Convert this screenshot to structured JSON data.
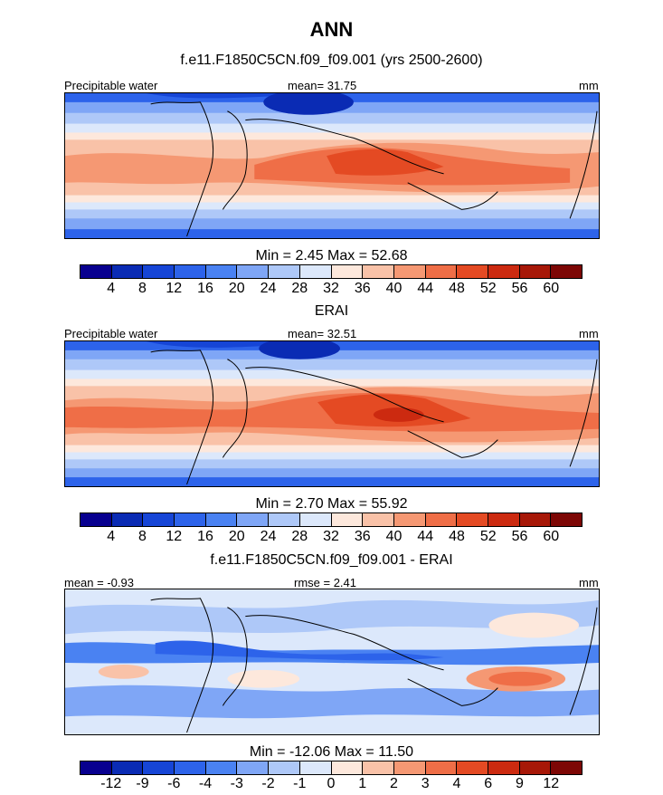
{
  "title": "ANN",
  "panels": [
    {
      "heading": "f.e11.F1850C5CN.f09_f09.001 (yrs 2500-2600)",
      "left_label": "Precipitable water",
      "center_label": "mean=  31.75",
      "units": "mm",
      "minmax": "Min =   2.45 Max =  52.68",
      "map_type": "absolute"
    },
    {
      "heading": "ERAI",
      "left_label": "Precipitable water",
      "center_label": "mean=  32.51",
      "units": "mm",
      "minmax": "Min =   2.70 Max =  55.92",
      "map_type": "absolute"
    },
    {
      "heading": "f.e11.F1850C5CN.f09_f09.001 - ERAI",
      "left_label": "mean =  -0.93",
      "center_label": "rmse =   2.41",
      "units": "mm",
      "minmax": "Min = -12.06 Max =  11.50",
      "map_type": "difference"
    }
  ],
  "colorbar_abs": {
    "colors": [
      "#08008f",
      "#0a2bb4",
      "#1645d6",
      "#2d63ea",
      "#4a82f2",
      "#7fa6f6",
      "#aec8f8",
      "#dce8fb",
      "#fde8dc",
      "#f9c2a8",
      "#f59873",
      "#ef6e47",
      "#e44a23",
      "#cc2a10",
      "#a71808",
      "#7d0705"
    ],
    "labels": [
      "4",
      "8",
      "12",
      "16",
      "20",
      "24",
      "28",
      "32",
      "36",
      "40",
      "44",
      "48",
      "52",
      "56",
      "60"
    ]
  },
  "colorbar_diff": {
    "colors": [
      "#08008f",
      "#0a2bb4",
      "#1645d6",
      "#2d63ea",
      "#4a82f2",
      "#7fa6f6",
      "#aec8f8",
      "#dce8fb",
      "#fde8dc",
      "#f9c2a8",
      "#f59873",
      "#ef6e47",
      "#e44a23",
      "#cc2a10",
      "#a71808",
      "#7d0705"
    ],
    "labels": [
      "-12",
      "-9",
      "-6",
      "-4",
      "-3",
      "-2",
      "-1",
      "0",
      "1",
      "2",
      "3",
      "4",
      "6",
      "9",
      "12"
    ]
  }
}
